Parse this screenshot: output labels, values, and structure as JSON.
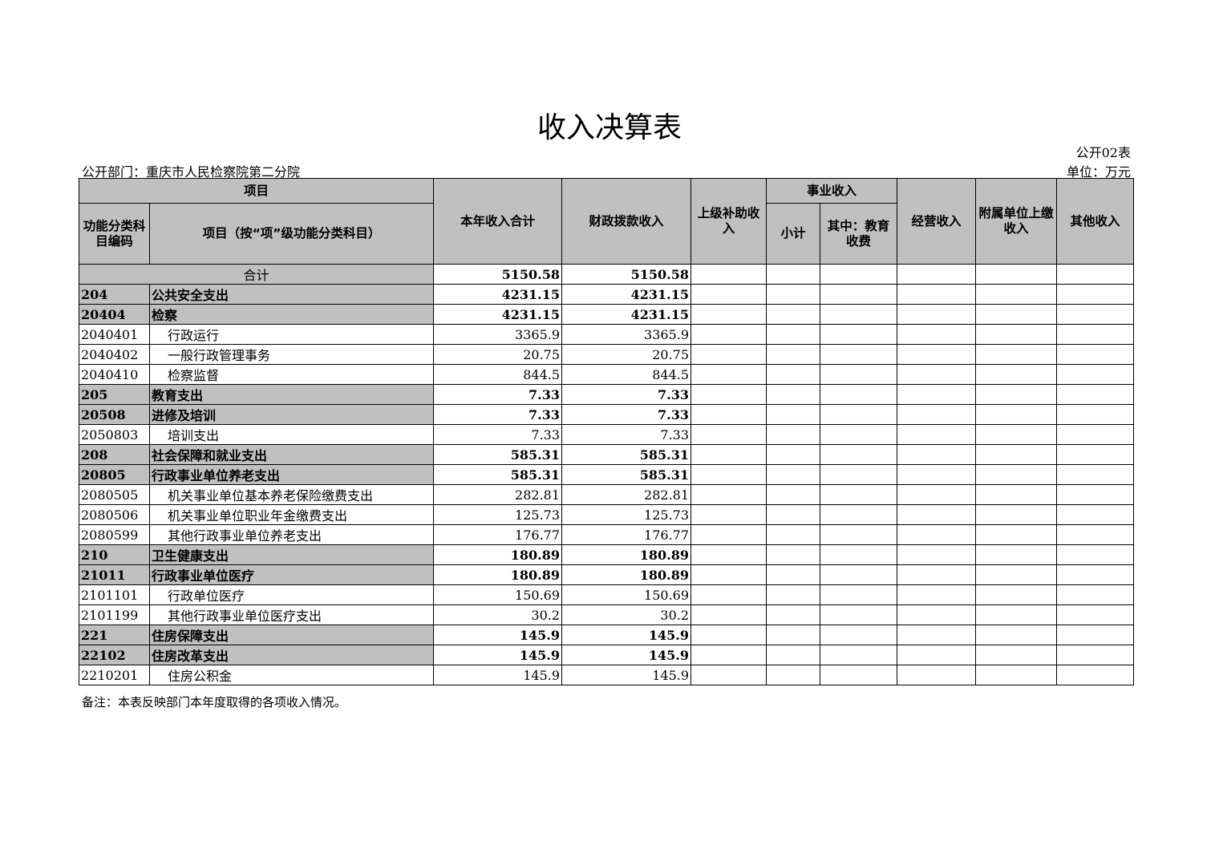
{
  "title": "收入决算表",
  "table_code": "公开02表",
  "department": "公开部门：重庆市人民检察院第二分院",
  "unit": "单位：万元",
  "headers": {
    "project": "项目",
    "func_code": "功能分类科目编码",
    "func_name": "项目（按“项”级功能分类科目）",
    "total": "本年收入合计",
    "fiscal": "财政拨款收入",
    "superior": "上级补助收入",
    "business": "事业收入",
    "subtotal": "小计",
    "edu": "其中：教育收费",
    "operating": "经营收入",
    "affiliated": "附属单位上缴收入",
    "other": "其他收入"
  },
  "total_row": {
    "label": "合计",
    "total": "5150.58",
    "fiscal": "5150.58"
  },
  "rows": [
    {
      "code": "204",
      "name": "公共安全支出",
      "total": "4231.15",
      "fiscal": "4231.15",
      "level": 1
    },
    {
      "code": "20404",
      "name": "检察",
      "total": "4231.15",
      "fiscal": "4231.15",
      "level": 2
    },
    {
      "code": "2040401",
      "name": "行政运行",
      "total": "3365.9",
      "fiscal": "3365.9",
      "level": 3
    },
    {
      "code": "2040402",
      "name": "一般行政管理事务",
      "total": "20.75",
      "fiscal": "20.75",
      "level": 3
    },
    {
      "code": "2040410",
      "name": "检察监督",
      "total": "844.5",
      "fiscal": "844.5",
      "level": 3
    },
    {
      "code": "205",
      "name": "教育支出",
      "total": "7.33",
      "fiscal": "7.33",
      "level": 1
    },
    {
      "code": "20508",
      "name": "进修及培训",
      "total": "7.33",
      "fiscal": "7.33",
      "level": 2
    },
    {
      "code": "2050803",
      "name": "培训支出",
      "total": "7.33",
      "fiscal": "7.33",
      "level": 3
    },
    {
      "code": "208",
      "name": "社会保障和就业支出",
      "total": "585.31",
      "fiscal": "585.31",
      "level": 1
    },
    {
      "code": "20805",
      "name": "行政事业单位养老支出",
      "total": "585.31",
      "fiscal": "585.31",
      "level": 2
    },
    {
      "code": "2080505",
      "name": "机关事业单位基本养老保险缴费支出",
      "total": "282.81",
      "fiscal": "282.81",
      "level": 3
    },
    {
      "code": "2080506",
      "name": "机关事业单位职业年金缴费支出",
      "total": "125.73",
      "fiscal": "125.73",
      "level": 3
    },
    {
      "code": "2080599",
      "name": "其他行政事业单位养老支出",
      "total": "176.77",
      "fiscal": "176.77",
      "level": 3
    },
    {
      "code": "210",
      "name": "卫生健康支出",
      "total": "180.89",
      "fiscal": "180.89",
      "level": 1
    },
    {
      "code": "21011",
      "name": "行政事业单位医疗",
      "total": "180.89",
      "fiscal": "180.89",
      "level": 2
    },
    {
      "code": "2101101",
      "name": "行政单位医疗",
      "total": "150.69",
      "fiscal": "150.69",
      "level": 3
    },
    {
      "code": "2101199",
      "name": "其他行政事业单位医疗支出",
      "total": "30.2",
      "fiscal": "30.2",
      "level": 3
    },
    {
      "code": "221",
      "name": "住房保障支出",
      "total": "145.9",
      "fiscal": "145.9",
      "level": 1
    },
    {
      "code": "22102",
      "name": "住房改革支出",
      "total": "145.9",
      "fiscal": "145.9",
      "level": 2
    },
    {
      "code": "2210201",
      "name": "住房公积金",
      "total": "145.9",
      "fiscal": "145.9",
      "level": 3
    }
  ],
  "note": "备注：本表反映部门本年度取得的各项收入情况。"
}
